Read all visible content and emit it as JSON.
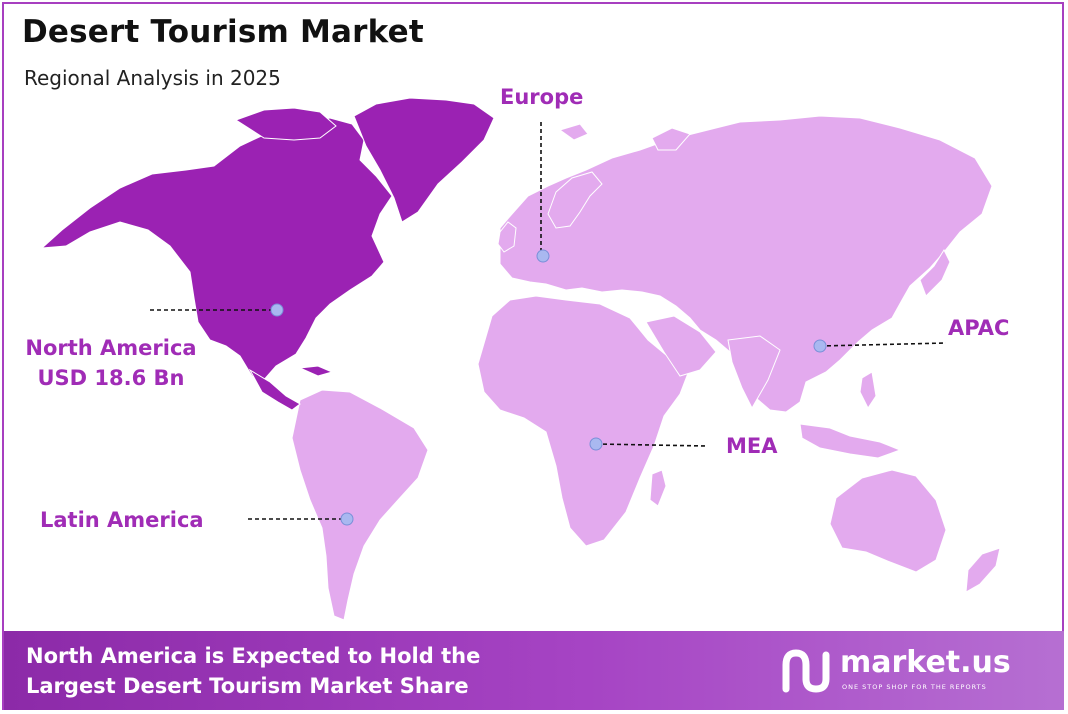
{
  "header": {
    "title": "Desert Tourism Market",
    "subtitle": "Regional Analysis in 2025"
  },
  "regions": {
    "north_america": {
      "name": "North America",
      "value": "USD 18.6 Bn"
    },
    "europe": {
      "name": "Europe"
    },
    "apac": {
      "name": "APAC"
    },
    "mea": {
      "name": "MEA"
    },
    "latin_america": {
      "name": "Latin America"
    }
  },
  "footer": {
    "line1": "North America is Expected to Hold the",
    "line2": "Largest Desert Tourism Market Share"
  },
  "brand": {
    "name": "market.us",
    "tagline": "ONE STOP SHOP FOR THE REPORTS",
    "logo_icon": "market-us-logo-icon"
  },
  "colors": {
    "highlight_region": "#9b22b3",
    "other_regions": "#e3aaee",
    "label_text": "#a02cb6",
    "marker": "#a9b8f0",
    "border": "#a73fc0"
  }
}
